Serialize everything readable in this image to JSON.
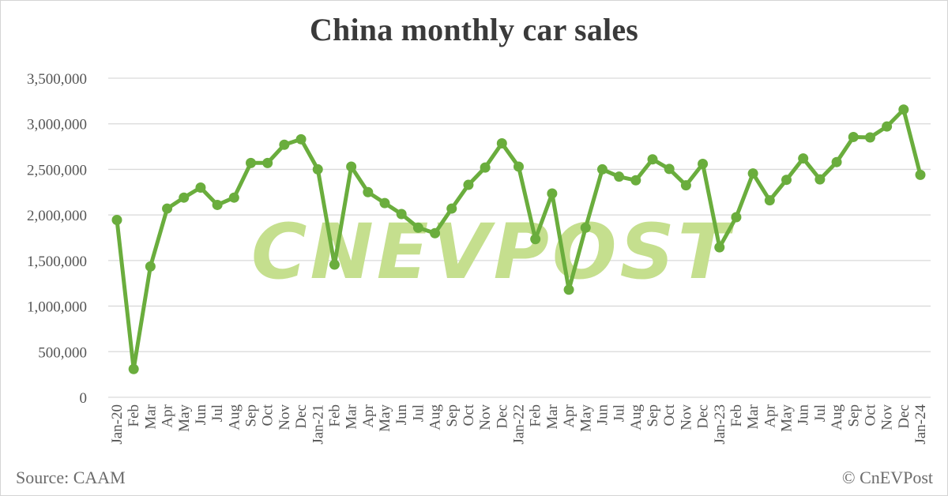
{
  "header": {
    "title": "China monthly car sales"
  },
  "footer": {
    "source": "Source: CAAM",
    "copyright": "© CnEVPost"
  },
  "watermark": {
    "text": "CNEVPOST",
    "color": "#c5df8e"
  },
  "colors": {
    "line": "#6aad3d",
    "marker": "#6aad3d",
    "grid": "#d9d9d9",
    "axis_text": "#555555",
    "title": "#3a3a3a"
  },
  "chart_data": {
    "type": "line",
    "title": "China monthly car sales",
    "xlabel": "",
    "ylabel": "",
    "ylim": [
      0,
      3500000
    ],
    "yticks": [
      0,
      500000,
      1000000,
      1500000,
      2000000,
      2500000,
      3000000,
      3500000
    ],
    "ytick_labels": [
      "0",
      "500,000",
      "1,000,000",
      "1,500,000",
      "2,000,000",
      "2,500,000",
      "3,000,000",
      "3,500,000"
    ],
    "grid": true,
    "legend": null,
    "categories": [
      "Jan-20",
      "Feb",
      "Mar",
      "Apr",
      "May",
      "Jun",
      "Jul",
      "Aug",
      "Sep",
      "Oct",
      "Nov",
      "Dec",
      "Jan-21",
      "Feb",
      "Mar",
      "Apr",
      "May",
      "Jun",
      "Jul",
      "Aug",
      "Sep",
      "Oct",
      "Nov",
      "Dec",
      "Jan-22",
      "Feb",
      "Mar",
      "Apr",
      "May",
      "Jun",
      "Jul",
      "Aug",
      "Sep",
      "Oct",
      "Nov",
      "Dec",
      "Jan-23",
      "Feb",
      "Mar",
      "Apr",
      "May",
      "Jun",
      "Jul",
      "Aug",
      "Sep",
      "Oct",
      "Nov",
      "Dec",
      "Jan-24"
    ],
    "series": [
      {
        "name": "Car sales",
        "values": [
          1945000,
          310000,
          1435000,
          2070000,
          2190000,
          2300000,
          2110000,
          2190000,
          2570000,
          2570000,
          2770000,
          2830000,
          2500000,
          1455000,
          2530000,
          2250000,
          2130000,
          2010000,
          1860000,
          1800000,
          2070000,
          2330000,
          2520000,
          2785000,
          2530000,
          1735000,
          2235000,
          1180000,
          1860000,
          2500000,
          2420000,
          2380000,
          2610000,
          2505000,
          2325000,
          2560000,
          1645000,
          1975000,
          2455000,
          2160000,
          2385000,
          2620000,
          2390000,
          2580000,
          2855000,
          2850000,
          2970000,
          3156000,
          2440000
        ]
      }
    ]
  }
}
